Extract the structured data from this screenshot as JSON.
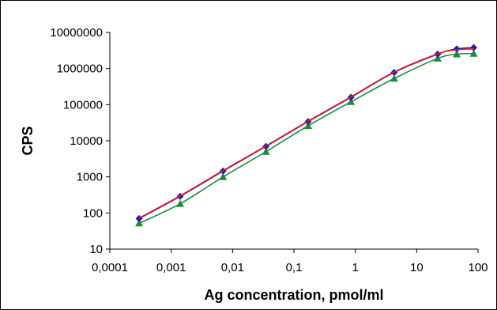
{
  "chart_data": {
    "type": "line",
    "title": "",
    "xlabel": "Ag concentration, pmol/ml",
    "ylabel": "CPS",
    "x_scale": "log",
    "y_scale": "log",
    "xlim": [
      0.0001,
      100
    ],
    "ylim": [
      10,
      10000000
    ],
    "x_tick_labels": [
      "0,0001",
      "0,001",
      "0,01",
      "0,1",
      "1",
      "10",
      "100"
    ],
    "y_tick_labels": [
      "10",
      "100",
      "1000",
      "10000",
      "100000",
      "1000000",
      "10000000"
    ],
    "grid": false,
    "legend": "none",
    "series": [
      {
        "color": "#1f1fa0",
        "marker": "diamond",
        "x": [
          0.0003,
          0.0014,
          0.007,
          0.035,
          0.17,
          0.85,
          4.3,
          22,
          45,
          85
        ],
        "y": [
          70,
          290,
          1450,
          7000,
          34000,
          160000,
          780000,
          2500000,
          3500000,
          3800000
        ]
      },
      {
        "color": "#e8172b",
        "marker": "none",
        "x": [
          0.0003,
          0.0014,
          0.007,
          0.035,
          0.17,
          0.85,
          4.3,
          22,
          45,
          85
        ],
        "y": [
          72,
          300,
          1500,
          7200,
          35000,
          165000,
          800000,
          2550000,
          3300000,
          3500000
        ]
      },
      {
        "color": "#1f8a3a",
        "marker": "triangle",
        "x": [
          0.0003,
          0.0014,
          0.007,
          0.035,
          0.17,
          0.85,
          4.3,
          22,
          45,
          85
        ],
        "y": [
          52,
          180,
          1000,
          5000,
          26000,
          120000,
          530000,
          1900000,
          2500000,
          2600000
        ]
      }
    ]
  }
}
